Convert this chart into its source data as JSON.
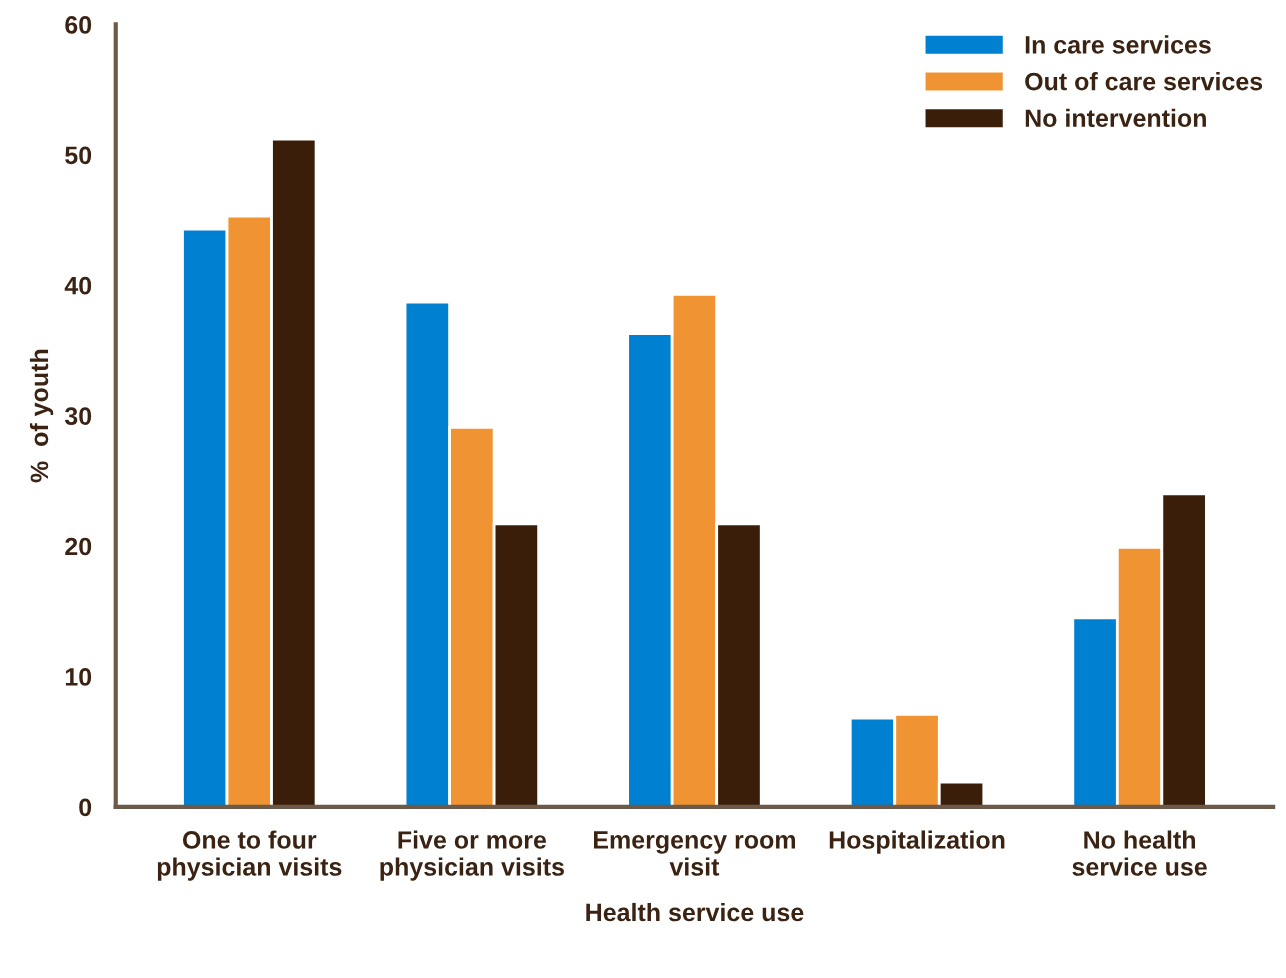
{
  "chart_data": {
    "type": "bar",
    "xlabel": "Health service use",
    "ylabel": "%  of youth",
    "categories": [
      "One to four\nphysician visits",
      "Five or more\nphysician visits",
      "Emergency room\nvisit",
      "Hospitalization",
      "No health\nservice use"
    ],
    "series": [
      {
        "name": "In care services",
        "color": "#0080d0",
        "values": [
          44.3,
          38.7,
          36.3,
          6.8,
          14.5
        ]
      },
      {
        "name": "Out of care services",
        "color": "#f09433",
        "values": [
          45.3,
          29.1,
          39.3,
          7.1,
          19.9
        ]
      },
      {
        "name": "No intervention",
        "color": "#3b1e0a",
        "values": [
          51.2,
          21.7,
          21.7,
          1.9,
          24.0
        ]
      }
    ],
    "ylim": [
      0,
      60
    ],
    "yticks": [
      0,
      10,
      20,
      30,
      40,
      50,
      60
    ],
    "grid": false,
    "legend": "top right"
  }
}
